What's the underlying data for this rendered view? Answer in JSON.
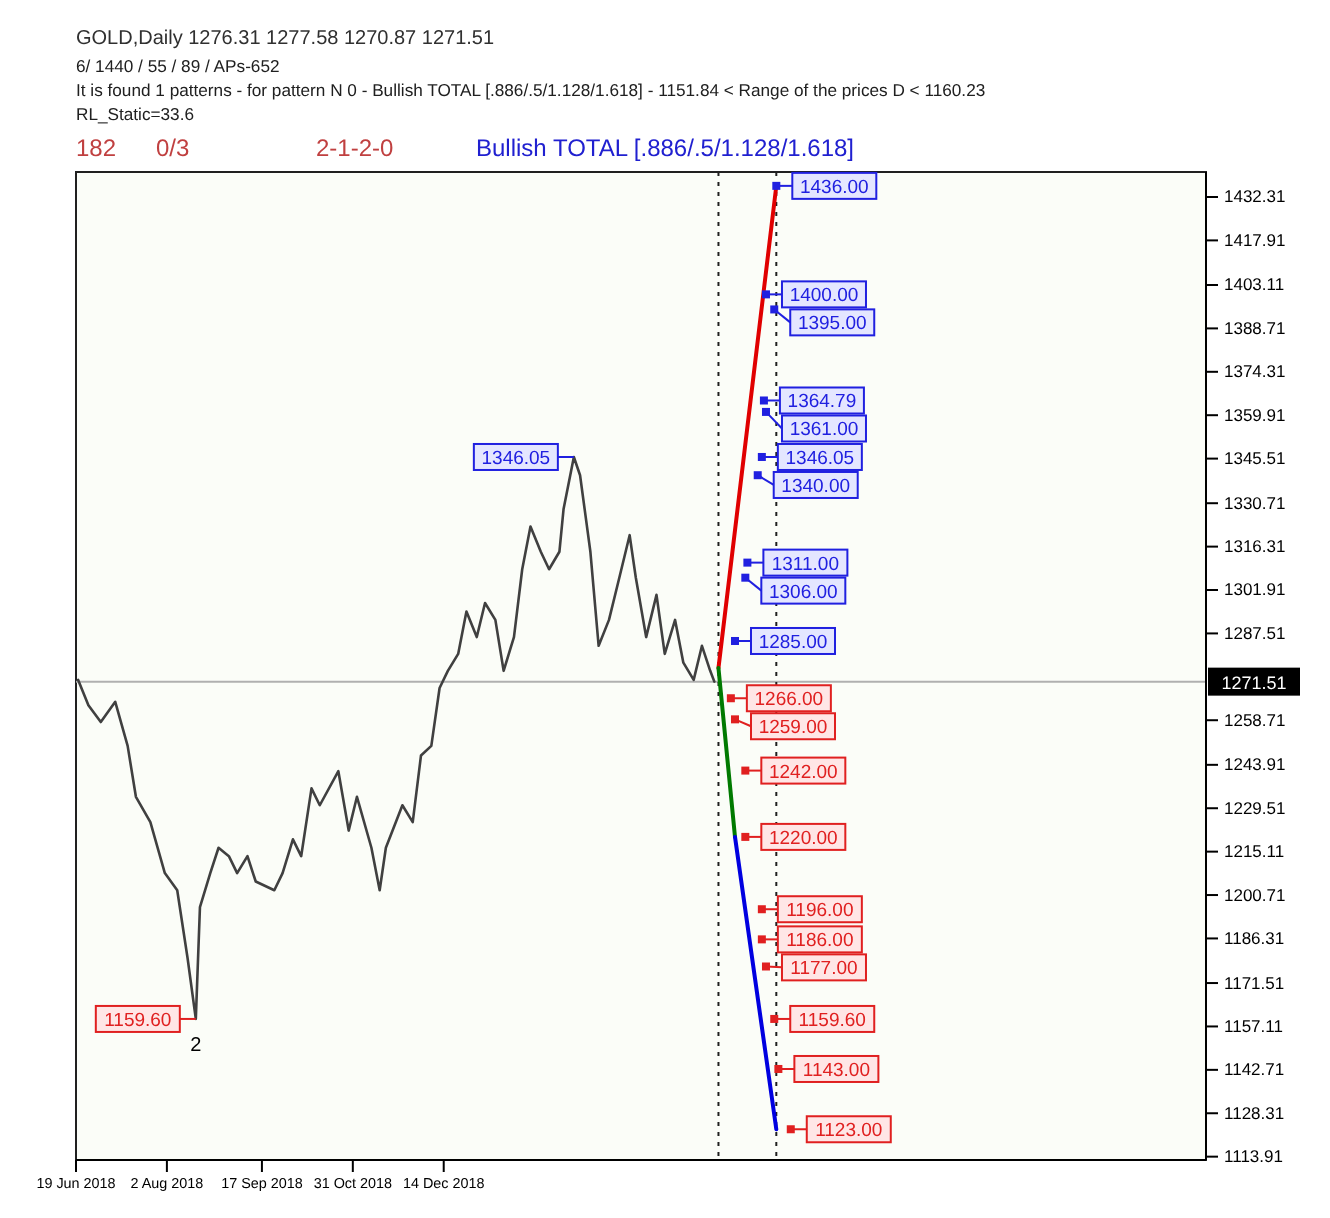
{
  "chart_data": {
    "type": "line",
    "title": "GOLD,Daily 1276.31 1277.58 1270.87 1271.51",
    "annotations": [
      "6/ 1440 / 55 / 89 / APs-652",
      "It is found 1 patterns - for pattern N 0 - Bullish TOTAL [.886/.5/1.128/1.618] - 1151.84 < Range of the prices D < 1160.23",
      "RL_Static=33.6",
      "182",
      "0/3",
      "2-1-2-0",
      "Bullish TOTAL [.886/.5/1.128/1.618]",
      {
        "text": "2",
        "x": "2018-08-16",
        "y": 1159.6
      }
    ],
    "xlim": [
      "2018-06-19",
      "2019-12-18"
    ],
    "xticks": [
      {
        "value": "2018-06-19",
        "label": "19 Jun 2018"
      },
      {
        "value": "2018-08-02",
        "label": "2 Aug 2018"
      },
      {
        "value": "2018-09-17",
        "label": "17 Sep 2018"
      },
      {
        "value": "2018-10-31",
        "label": "31 Oct 2018"
      },
      {
        "value": "2018-12-14",
        "label": "14 Dec 2018"
      }
    ],
    "ylim": [
      1112.8,
      1440.6
    ],
    "yticks": [
      1113.91,
      1128.31,
      1142.71,
      1157.11,
      1171.51,
      1186.31,
      1200.71,
      1215.11,
      1229.51,
      1243.91,
      1258.71,
      1287.51,
      1301.91,
      1316.31,
      1330.71,
      1345.51,
      1359.91,
      1374.31,
      1388.71,
      1403.11,
      1417.91,
      1432.31
    ],
    "ref_lines": [
      {
        "axis": "y",
        "value": 1271.51,
        "label": "1271.51",
        "color": "#b0b0b0"
      },
      {
        "axis": "x",
        "value": "2019-04-26",
        "color": "#202020",
        "line_style": "dotted"
      },
      {
        "axis": "x",
        "value": "2019-05-24",
        "color": "#202020",
        "line_style": "dotted"
      }
    ],
    "series": [
      {
        "color": "#404040",
        "x": [
          "2018-06-20",
          "2018-06-25",
          "2018-07-01",
          "2018-07-08",
          "2018-07-14",
          "2018-07-18",
          "2018-07-25",
          "2018-08-01",
          "2018-08-07",
          "2018-08-12",
          "2018-08-16",
          "2018-08-18",
          "2018-08-23",
          "2018-08-27",
          "2018-09-01",
          "2018-09-05",
          "2018-09-10",
          "2018-09-14",
          "2018-09-23",
          "2018-09-27",
          "2018-10-02",
          "2018-10-06",
          "2018-10-11",
          "2018-10-15",
          "2018-10-24",
          "2018-10-29",
          "2018-11-02",
          "2018-11-09",
          "2018-11-13",
          "2018-11-16",
          "2018-11-24",
          "2018-11-29",
          "2018-12-03",
          "2018-12-08",
          "2018-12-12",
          "2018-12-16",
          "2018-12-21",
          "2018-12-25",
          "2018-12-30",
          "2019-01-03",
          "2019-01-08",
          "2019-01-12",
          "2019-01-17",
          "2019-01-21",
          "2019-01-25",
          "2019-01-30",
          "2019-02-03",
          "2019-02-08",
          "2019-02-10",
          "2019-02-15",
          "2019-02-18",
          "2019-02-23",
          "2019-02-27",
          "2019-03-04",
          "2019-03-09",
          "2019-03-14",
          "2019-03-17",
          "2019-03-22",
          "2019-03-27",
          "2019-03-31",
          "2019-04-05",
          "2019-04-09",
          "2019-04-14",
          "2019-04-18",
          "2019-04-22",
          "2019-04-24"
        ],
        "values": [
          1272.1,
          1263.7,
          1258.1,
          1264.8,
          1250.2,
          1233.3,
          1224.9,
          1208.0,
          1202.3,
          1179.8,
          1159.6,
          1196.7,
          1208.0,
          1216.4,
          1213.6,
          1208.0,
          1213.6,
          1205.2,
          1202.3,
          1208.0,
          1219.2,
          1213.6,
          1236.1,
          1230.5,
          1241.8,
          1222.1,
          1233.3,
          1216.4,
          1202.3,
          1216.4,
          1230.5,
          1224.9,
          1247.0,
          1250.2,
          1269.4,
          1275.1,
          1280.7,
          1294.8,
          1286.3,
          1297.6,
          1292.0,
          1275.1,
          1286.3,
          1308.8,
          1323.0,
          1314.6,
          1308.8,
          1314.6,
          1328.7,
          1346.05,
          1340.0,
          1314.6,
          1283.4,
          1292.0,
          1306.0,
          1320.1,
          1306.0,
          1286.3,
          1300.3,
          1280.7,
          1292.0,
          1277.8,
          1272.1,
          1283.4,
          1275.1,
          1271.51
        ],
        "value_labels": [
          null,
          null,
          null,
          null,
          null,
          null,
          null,
          null,
          null,
          null,
          "1159.60",
          null,
          null,
          null,
          null,
          null,
          null,
          null,
          null,
          null,
          null,
          null,
          null,
          null,
          null,
          null,
          null,
          null,
          null,
          null,
          null,
          null,
          null,
          null,
          null,
          null,
          null,
          null,
          null,
          null,
          null,
          null,
          null,
          null,
          null,
          null,
          null,
          null,
          null,
          "1346.05",
          null,
          null,
          null,
          null,
          null,
          null,
          null,
          null,
          null,
          null,
          null,
          null,
          null,
          null,
          null,
          null
        ]
      },
      {
        "color": "#e00000",
        "x": [
          "2019-04-26",
          "2019-05-24"
        ],
        "values": [
          1276,
          1436
        ]
      },
      {
        "color": "#007a00",
        "x": [
          "2019-04-26",
          "2019-05-04"
        ],
        "values": [
          1276,
          1220
        ]
      },
      {
        "color": "#0000e0",
        "x": [
          "2019-05-04",
          "2019-05-24"
        ],
        "values": [
          1220,
          1123
        ]
      },
      {
        "type": "scatter",
        "marker": "square",
        "color": "#2020e0",
        "x": [
          "2019-05-24",
          "2019-05-19",
          "2019-05-23",
          "2019-05-18",
          "2019-05-19",
          "2019-05-17",
          "2019-05-15",
          "2019-05-10",
          "2019-05-09",
          "2019-05-04"
        ],
        "values": [
          1436,
          1400,
          1395,
          1364.79,
          1361,
          1346.05,
          1340,
          1311,
          1306,
          1285
        ],
        "value_labels": [
          "1436.00",
          "1400.00",
          "1395.00",
          "1364.79",
          "1361.00",
          "1346.05",
          "1340.00",
          "1311.00",
          "1306.00",
          "1285.00"
        ]
      },
      {
        "type": "scatter",
        "marker": "square",
        "color": "#e02020",
        "x": [
          "2019-05-02",
          "2019-05-04",
          "2019-05-09",
          "2019-05-09",
          "2019-05-17",
          "2019-05-17",
          "2019-05-19",
          "2019-05-23",
          "2019-05-25",
          "2019-05-31"
        ],
        "values": [
          1266,
          1259,
          1242,
          1220,
          1196,
          1186,
          1177,
          1159.6,
          1143,
          1123
        ],
        "value_labels": [
          "1266.00",
          "1259.00",
          "1242.00",
          "1220.00",
          "1196.00",
          "1186.00",
          "1177.00",
          "1159.60",
          "1143.00",
          "1123.00"
        ]
      }
    ]
  }
}
